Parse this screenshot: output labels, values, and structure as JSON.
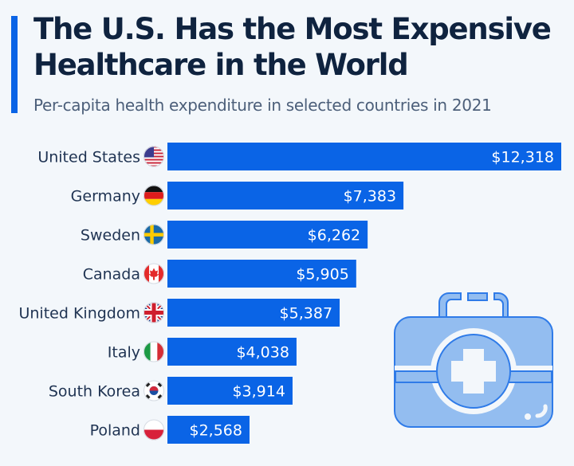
{
  "header": {
    "title": "The U.S. Has the Most Expensive Healthcare in the World",
    "subtitle": "Per-capita health expenditure in selected countries in 2021"
  },
  "colors": {
    "accent": "#0a64e6",
    "bar": "#0a64e6",
    "background": "#f3f7fb",
    "title": "#0f233f"
  },
  "chart_data": {
    "type": "bar",
    "orientation": "horizontal",
    "title": "The U.S. Has the Most Expensive Healthcare in the World",
    "subtitle": "Per-capita health expenditure in selected countries in 2021",
    "xlabel": "",
    "ylabel": "",
    "unit": "USD",
    "categories": [
      "United States",
      "Germany",
      "Sweden",
      "Canada",
      "United Kingdom",
      "Italy",
      "South Korea",
      "Poland"
    ],
    "flags": [
      "us-flag-icon",
      "germany-flag-icon",
      "sweden-flag-icon",
      "canada-flag-icon",
      "uk-flag-icon",
      "italy-flag-icon",
      "south-korea-flag-icon",
      "poland-flag-icon"
    ],
    "values": [
      12318,
      7383,
      6262,
      5905,
      5387,
      4038,
      3914,
      2568
    ],
    "labels": [
      "$12,318",
      "$7,383",
      "$6,262",
      "$5,905",
      "$5,387",
      "$4,038",
      "$3,914",
      "$2,568"
    ],
    "xlim": [
      0,
      12318
    ],
    "grid": false,
    "legend": "none"
  },
  "illustration": "first-aid-kit-icon"
}
